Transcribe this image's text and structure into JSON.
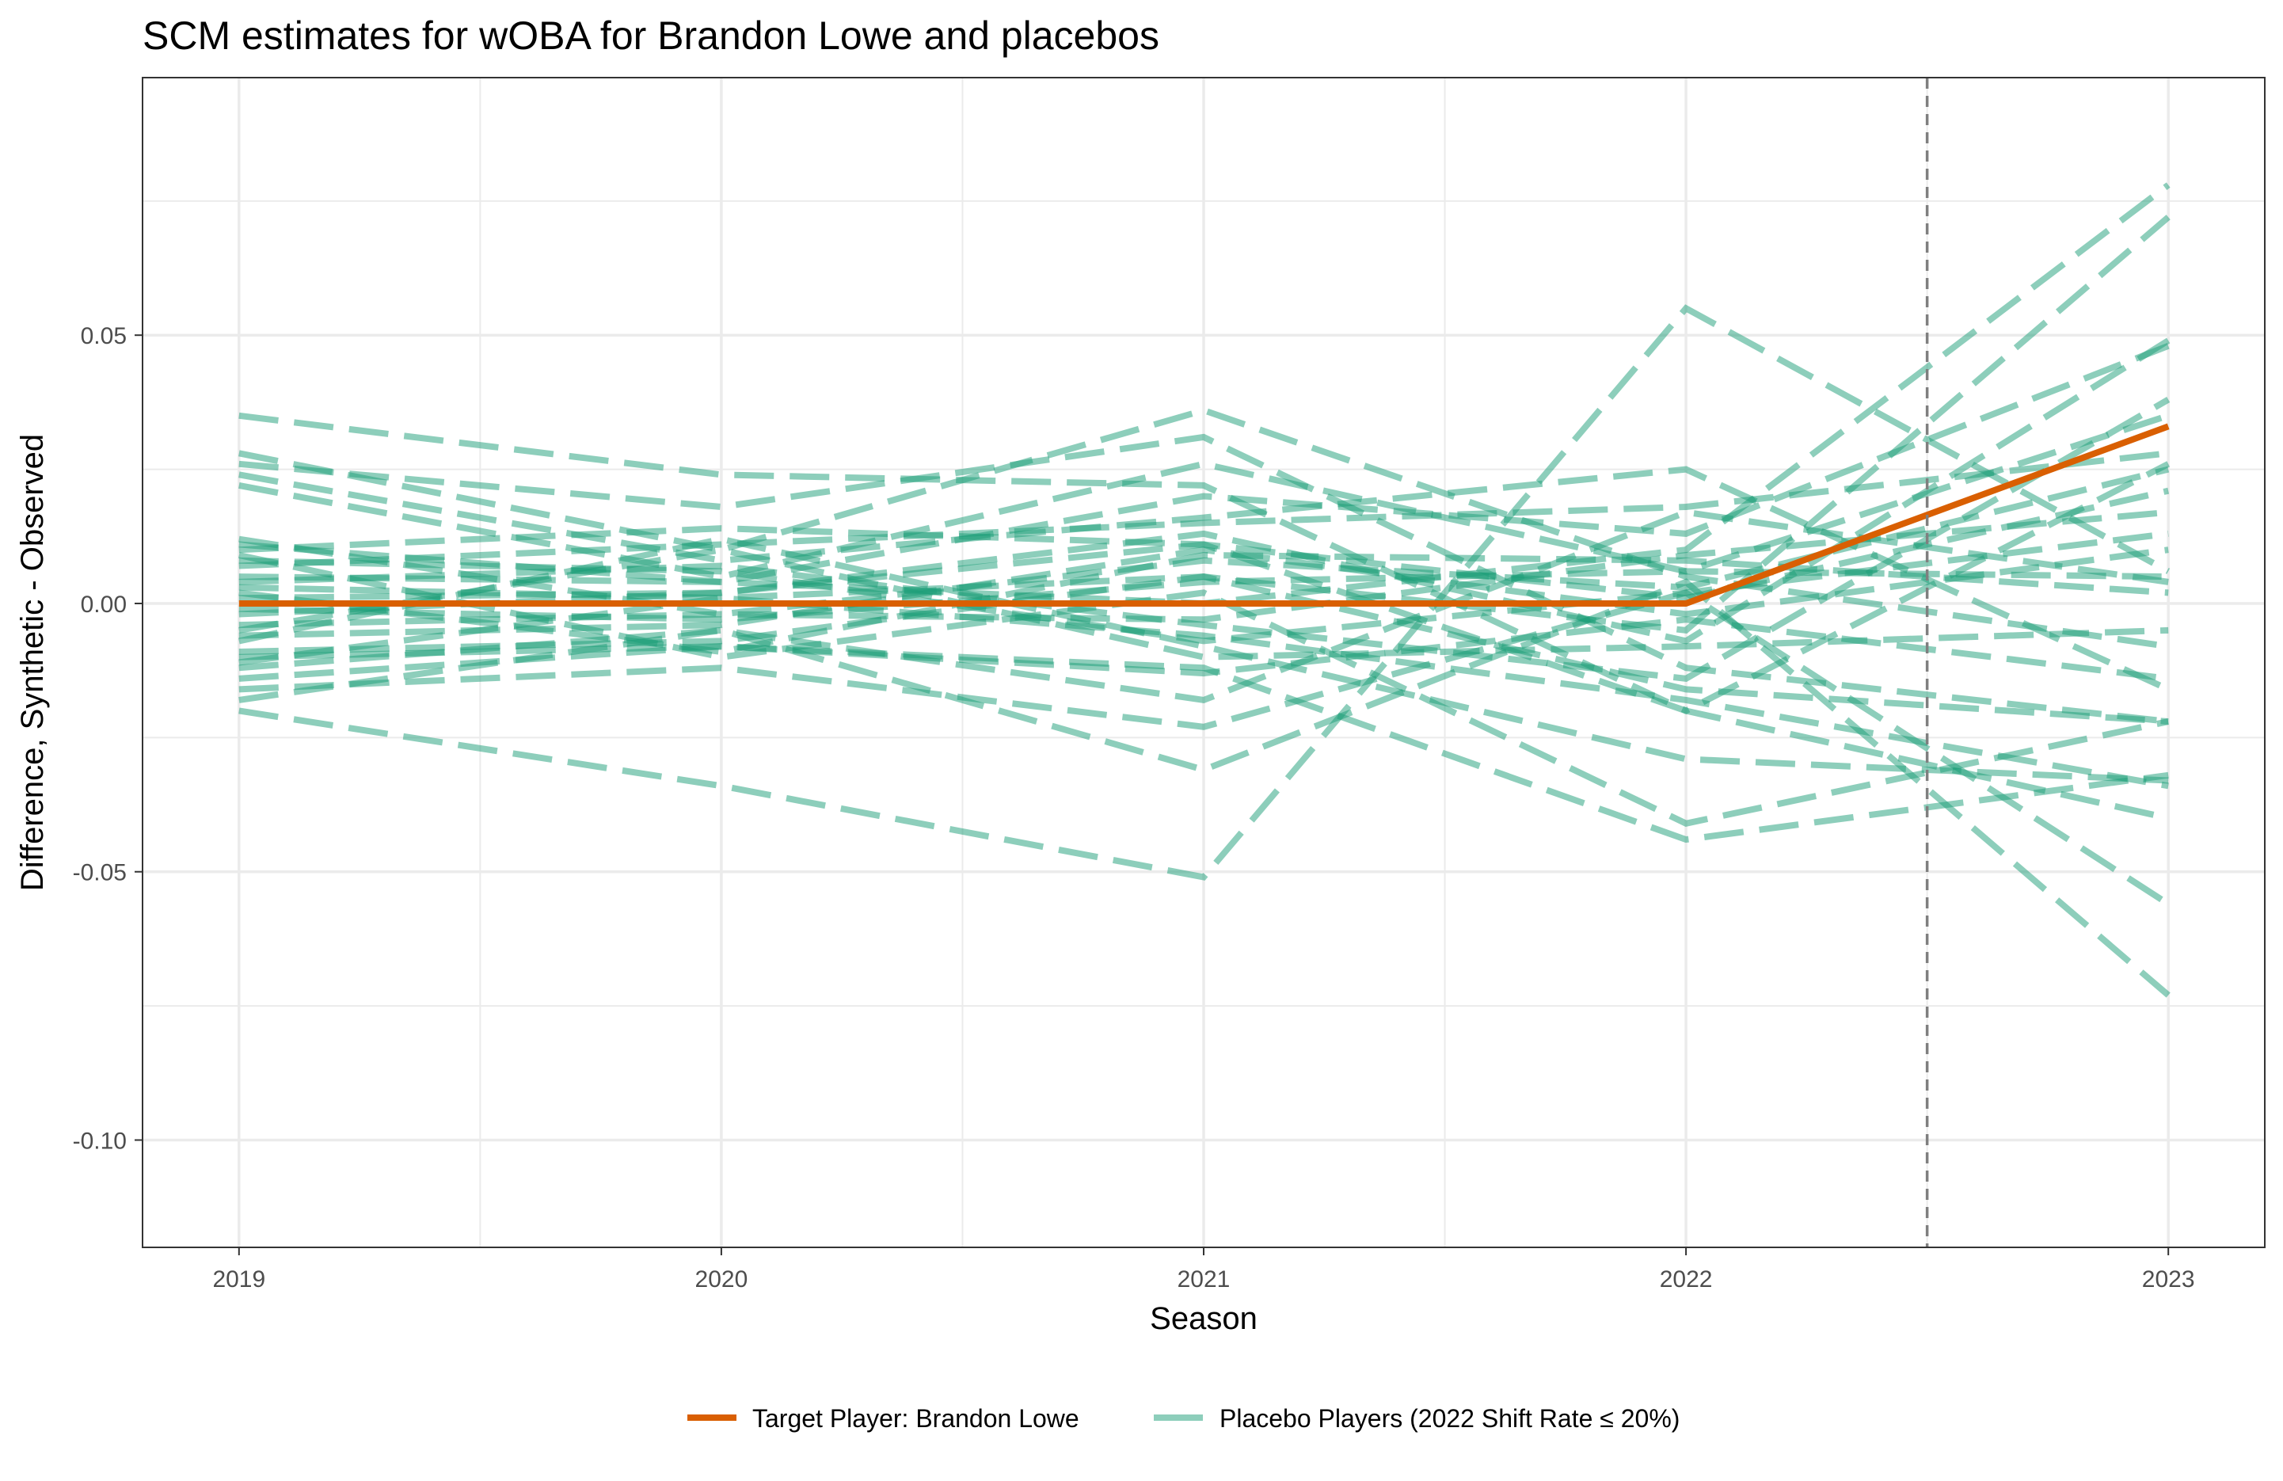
{
  "chart_data": {
    "type": "line",
    "title": "SCM estimates for wOBA for Brandon Lowe and placebos",
    "xlabel": "Season",
    "ylabel": "Difference, Synthetic - Observed",
    "x": [
      2019,
      2020,
      2021,
      2022,
      2023
    ],
    "x_tick_labels": [
      "2019",
      "2020",
      "2021",
      "2022",
      "2023"
    ],
    "xlim": [
      2018.8,
      2023.2
    ],
    "ylim": [
      -0.12,
      0.098
    ],
    "y_ticks": [
      0.05,
      0.0,
      -0.05,
      -0.1
    ],
    "y_tick_labels": [
      "0.05",
      "0.00",
      "-0.05",
      "-0.10"
    ],
    "grid": true,
    "treatment_line_x": 2022.5,
    "legend_position": "bottom",
    "colors": {
      "target": "#D95F02",
      "placebo": "#1B9E77",
      "treatment_line": "#7f7f7f",
      "grid": "#ebebeb",
      "panel_border": "#333333"
    },
    "target": {
      "name": "Target Player: Brandon Lowe",
      "values": [
        0.0,
        0.0,
        0.0,
        0.0,
        0.033
      ]
    },
    "placebo_legend": "Placebo Players (2022 Shift Rate ≤ 20%)",
    "placebos": [
      [
        0.035,
        0.024,
        0.022,
        -0.02,
        -0.04
      ],
      [
        0.028,
        0.01,
        0.036,
        0.005,
        -0.008
      ],
      [
        0.026,
        0.018,
        0.031,
        -0.012,
        -0.022
      ],
      [
        0.024,
        0.008,
        0.016,
        0.025,
        -0.016
      ],
      [
        0.022,
        0.005,
        0.026,
        0.006,
        0.035
      ],
      [
        0.011,
        0.004,
        0.02,
        0.013,
        0.048
      ],
      [
        0.01,
        0.014,
        0.011,
        0.001,
        0.021
      ],
      [
        0.007,
        0.011,
        0.015,
        0.018,
        0.028
      ],
      [
        0.005,
        0.004,
        0.0,
        0.01,
        0.078
      ],
      [
        0.003,
        0.001,
        0.005,
        -0.005,
        0.072
      ],
      [
        0.001,
        0.002,
        0.013,
        -0.007,
        0.049
      ],
      [
        -0.001,
        -0.003,
        0.004,
        0.006,
        0.005
      ],
      [
        -0.002,
        0.002,
        0.011,
        -0.02,
        0.026
      ],
      [
        -0.004,
        -0.002,
        -0.003,
        0.009,
        0.017
      ],
      [
        -0.006,
        -0.004,
        0.01,
        -0.002,
        0.01
      ],
      [
        -0.007,
        0.012,
        -0.008,
        -0.029,
        -0.033
      ],
      [
        -0.009,
        -0.007,
        0.005,
        -0.016,
        -0.022
      ],
      [
        -0.01,
        -0.008,
        -0.013,
        -0.003,
        -0.014
      ],
      [
        -0.012,
        -0.005,
        -0.018,
        0.017,
        0.004
      ],
      [
        -0.014,
        -0.008,
        -0.012,
        -0.044,
        -0.032
      ],
      [
        -0.016,
        -0.012,
        -0.023,
        0.002,
        -0.056
      ],
      [
        -0.018,
        -0.005,
        -0.031,
        0.004,
        -0.073
      ],
      [
        -0.02,
        -0.034,
        -0.051,
        0.055,
        0.006
      ],
      [
        0.008,
        0.006,
        -0.007,
        0.002,
        0.013
      ],
      [
        0.009,
        -0.01,
        0.002,
        -0.041,
        -0.022
      ],
      [
        0.004,
        0.007,
        -0.004,
        -0.014,
        0.038
      ],
      [
        -0.005,
        0.01,
        -0.01,
        -0.008,
        -0.005
      ],
      [
        0.012,
        -0.002,
        0.008,
        0.003,
        0.025
      ],
      [
        -0.011,
        0.001,
        -0.006,
        -0.018,
        -0.034
      ],
      [
        0.002,
        -0.009,
        0.009,
        0.008,
        0.002
      ]
    ]
  }
}
